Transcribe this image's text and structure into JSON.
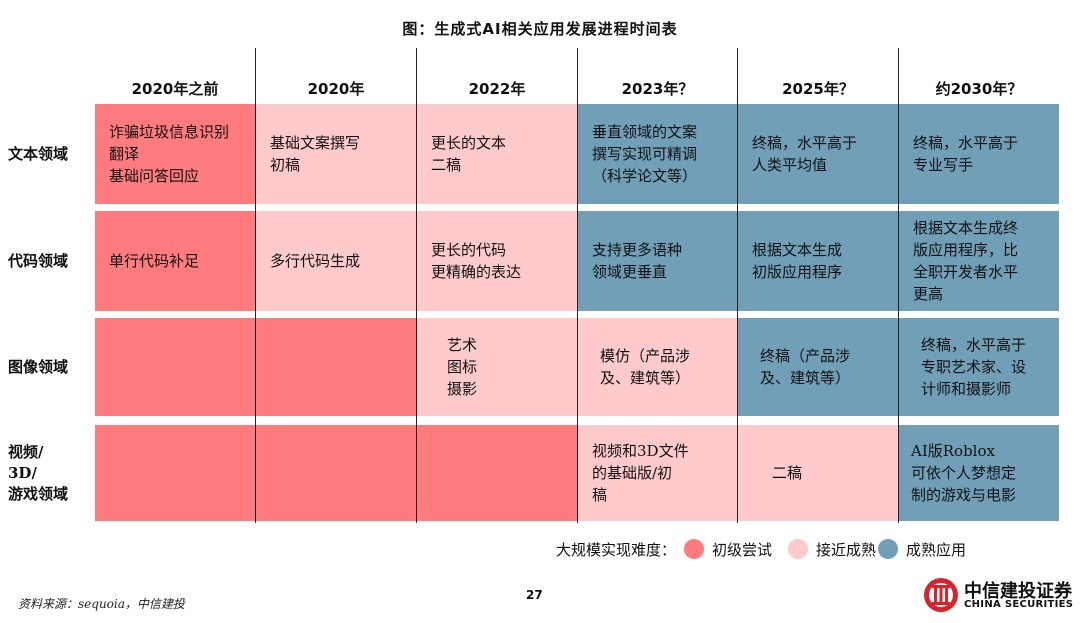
{
  "title": "图：生成式AI相关应用发展进程时间表",
  "columns": [
    "2020年之前",
    "2020年",
    "2022年",
    "2023年？",
    "2025年？",
    "约2030年？"
  ],
  "rows": [
    {
      "label": "文本领域",
      "cells": [
        "诈骗垃圾信息识别\n翻译\n基础问答回应",
        "基础文案撰写\n初稿",
        "更长的文本\n二稿",
        "垂直领域的文案\n撰写实现可精调\n（科学论文等）",
        "终稿，水平高于\n人类平均值",
        "终稿，水平高于\n专业写手"
      ],
      "levels": [
        "initial",
        "near",
        "near",
        "mature",
        "mature",
        "mature"
      ]
    },
    {
      "label": "代码领域",
      "cells": [
        "单行代码补足",
        "多行代码生成",
        "更长的代码\n更精确的表达",
        "支持更多语种\n领域更垂直",
        "根据文本生成\n初版应用程序",
        "根据文本生成终\n版应用程序，比\n全职开发者水平\n更高"
      ],
      "levels": [
        "initial",
        "near",
        "near",
        "mature",
        "mature",
        "mature"
      ]
    },
    {
      "label": "图像领域",
      "cells": [
        "",
        "",
        "艺术\n图标\n摄影",
        "模仿（产品涉\n及、建筑等）",
        "终稿（产品涉\n及、建筑等）",
        "终稿，水平高于\n专职艺术家、设\n计师和摄影师"
      ],
      "levels": [
        "initial",
        "initial",
        "near",
        "near",
        "mature",
        "mature"
      ]
    },
    {
      "label": "视频/\n3D/\n游戏领域",
      "cells": [
        "",
        "",
        "",
        "视频和3D文件\n的基础版/初\n稿",
        "二稿",
        "AI版Roblox\n可依个人梦想定\n制的游戏与电影"
      ],
      "levels": [
        "initial",
        "initial",
        "initial",
        "near",
        "near",
        "mature"
      ]
    }
  ],
  "legend": {
    "label": "大规模实现难度：",
    "items": [
      {
        "name": "初级尝试",
        "color": "#ff7b7e"
      },
      {
        "name": "接近成熟",
        "color": "#fecacb"
      },
      {
        "name": "成熟应用",
        "color": "#709fb7"
      }
    ]
  },
  "source": "资料来源：sequoia，中信建投",
  "page_number": "27",
  "logo": {
    "cn": "中信建投证券",
    "en": "CHINA SECURITIES"
  }
}
